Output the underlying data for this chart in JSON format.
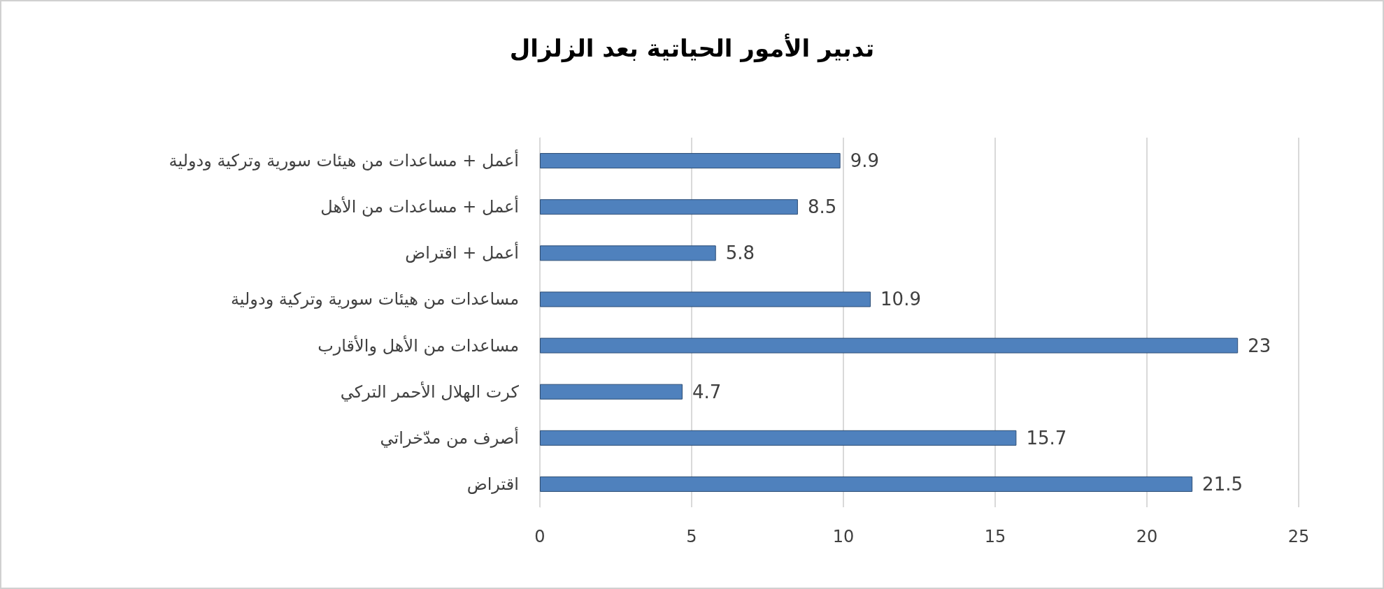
{
  "chart_data": {
    "type": "bar",
    "orientation": "horizontal",
    "title": "تدبير الأمور الحياتية بعد الزلزال",
    "categories": [
      "أعمل + مساعدات من هيئات سورية وتركية ودولية",
      "أعمل + مساعدات من الأهل",
      "أعمل + اقتراض",
      "مساعدات من هيئات سورية وتركية ودولية",
      "مساعدات من الأهل والأقارب",
      "كرت الهلال الأحمر التركي",
      "أصرف من مدّخراتي",
      "اقتراض"
    ],
    "values": [
      9.9,
      8.5,
      5.8,
      10.9,
      23,
      4.7,
      15.7,
      21.5
    ],
    "color": "#4f81bd",
    "xlim": [
      0,
      25
    ],
    "xticks": [
      0,
      5,
      10,
      15,
      20,
      25
    ],
    "grid": "x",
    "data_labels": true
  }
}
